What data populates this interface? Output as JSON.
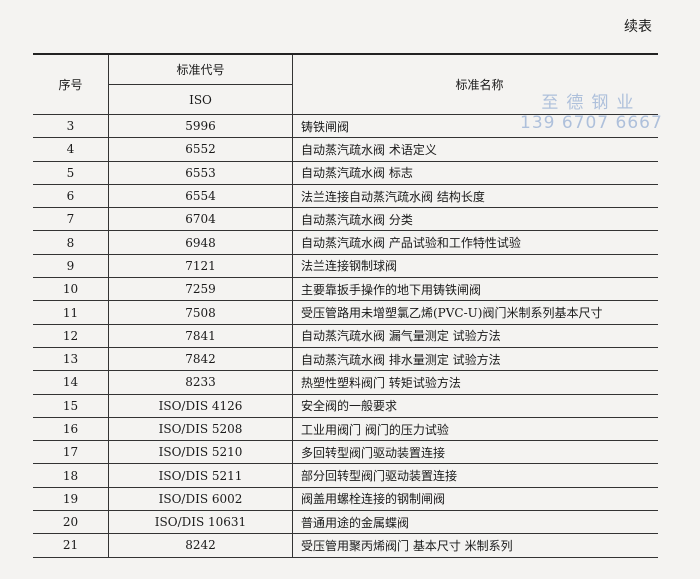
{
  "continued_label": "续表",
  "headers": {
    "seq": "序号",
    "code": "标准代号",
    "code_sub": "ISO",
    "name": "标准名称"
  },
  "rows": [
    {
      "seq": "3",
      "code": "5996",
      "name": "铸铁闸阀"
    },
    {
      "seq": "4",
      "code": "6552",
      "name": "自动蒸汽疏水阀 术语定义"
    },
    {
      "seq": "5",
      "code": "6553",
      "name": "自动蒸汽疏水阀 标志"
    },
    {
      "seq": "6",
      "code": "6554",
      "name": "法兰连接自动蒸汽疏水阀 结构长度"
    },
    {
      "seq": "7",
      "code": "6704",
      "name": "自动蒸汽疏水阀 分类"
    },
    {
      "seq": "8",
      "code": "6948",
      "name": "自动蒸汽疏水阀 产品试验和工作特性试验"
    },
    {
      "seq": "9",
      "code": "7121",
      "name": "法兰连接钢制球阀"
    },
    {
      "seq": "10",
      "code": "7259",
      "name": "主要靠扳手操作的地下用铸铁闸阀"
    },
    {
      "seq": "11",
      "code": "7508",
      "name": "受压管路用未增塑氯乙烯(PVC-U)阀门米制系列基本尺寸"
    },
    {
      "seq": "12",
      "code": "7841",
      "name": "自动蒸汽疏水阀 漏气量测定 试验方法"
    },
    {
      "seq": "13",
      "code": "7842",
      "name": "自动蒸汽疏水阀 排水量测定 试验方法"
    },
    {
      "seq": "14",
      "code": "8233",
      "name": "热塑性塑料阀门 转矩试验方法"
    },
    {
      "seq": "15",
      "code": "ISO/DIS 4126",
      "name": "安全阀的一般要求"
    },
    {
      "seq": "16",
      "code": "ISO/DIS 5208",
      "name": "工业用阀门 阀门的压力试验"
    },
    {
      "seq": "17",
      "code": "ISO/DIS 5210",
      "name": "多回转型阀门驱动装置连接"
    },
    {
      "seq": "18",
      "code": "ISO/DIS 5211",
      "name": "部分回转型阀门驱动装置连接"
    },
    {
      "seq": "19",
      "code": "ISO/DIS 6002",
      "name": "阀盖用螺栓连接的钢制闸阀"
    },
    {
      "seq": "20",
      "code": "ISO/DIS 10631",
      "name": "普通用途的金属蝶阀"
    },
    {
      "seq": "21",
      "code": "8242",
      "name": "受压管用聚丙烯阀门 基本尺寸 米制系列"
    }
  ],
  "watermark": {
    "line1": "至德钢业",
    "line2": "139 6707 6667",
    "color": "#9db4d6"
  }
}
